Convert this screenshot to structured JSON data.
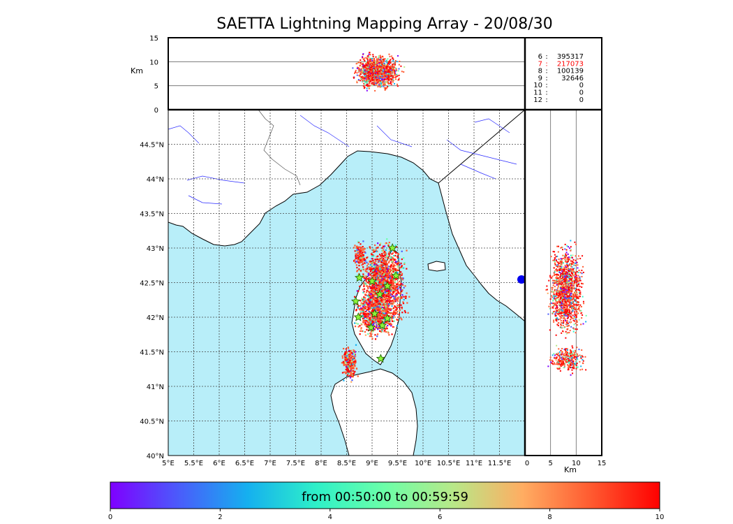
{
  "chart_data": {
    "type": "scatter",
    "title": "SAETTA Lightning Mapping Array - 20/08/30",
    "map_panel": {
      "lon_ticks": [
        "5°E",
        "5.5°E",
        "6°E",
        "6.5°E",
        "7°E",
        "7.5°E",
        "8°E",
        "8.5°E",
        "9°E",
        "9.5°E",
        "10°E",
        "10.5°E",
        "11°E",
        "11.5°E"
      ],
      "lat_ticks": [
        "40°N",
        "40.5°N",
        "41°N",
        "41.5°N",
        "42°N",
        "42.5°N",
        "43°N",
        "43.5°N",
        "44°N",
        "44.5°N"
      ],
      "xlim": [
        5,
        12
      ],
      "ylim": [
        40,
        45
      ],
      "grid": true,
      "stations": [
        {
          "lon": 9.4,
          "lat": 43.0
        },
        {
          "lon": 8.75,
          "lat": 42.57
        },
        {
          "lon": 9.0,
          "lat": 42.52
        },
        {
          "lon": 9.3,
          "lat": 42.45
        },
        {
          "lon": 9.47,
          "lat": 42.6
        },
        {
          "lon": 9.15,
          "lat": 42.33
        },
        {
          "lon": 8.68,
          "lat": 42.23
        },
        {
          "lon": 8.73,
          "lat": 42.0
        },
        {
          "lon": 9.05,
          "lat": 42.05
        },
        {
          "lon": 9.3,
          "lat": 41.98
        },
        {
          "lon": 9.2,
          "lat": 41.88
        },
        {
          "lon": 8.98,
          "lat": 41.85
        },
        {
          "lon": 9.17,
          "lat": 41.4
        }
      ]
    },
    "alt_top_panel": {
      "ylabel": "Km",
      "yticks": [
        "0",
        "5",
        "10",
        "15"
      ],
      "ylim": [
        0,
        15
      ]
    },
    "alt_side_panel": {
      "xlabel": "Km",
      "xticks": [
        "0",
        "5",
        "10",
        "15"
      ],
      "xlim": [
        0,
        15
      ]
    },
    "station_counts": [
      {
        "stations": "6",
        "count": "395317",
        "color": "#000000"
      },
      {
        "stations": "7",
        "count": "217073",
        "color": "#ff0000"
      },
      {
        "stations": "8",
        "count": "100139",
        "color": "#000000"
      },
      {
        "stations": "9",
        "count": "32646",
        "color": "#000000"
      },
      {
        "stations": "10",
        "count": "0",
        "color": "#000000"
      },
      {
        "stations": "11",
        "count": "0",
        "color": "#000000"
      },
      {
        "stations": "12",
        "count": "0",
        "color": "#000000"
      }
    ],
    "colorbar": {
      "label": "from 00:50:00 to 00:59:59",
      "ticks": [
        "0",
        "2",
        "4",
        "6",
        "8",
        "10"
      ],
      "range": [
        0,
        10
      ],
      "colors": [
        "#7f00ff",
        "#4a5cfb",
        "#15b0ef",
        "#2ef0c8",
        "#6cffa8",
        "#b8e888",
        "#ffad62",
        "#ff5a30",
        "#ff0000"
      ]
    }
  }
}
